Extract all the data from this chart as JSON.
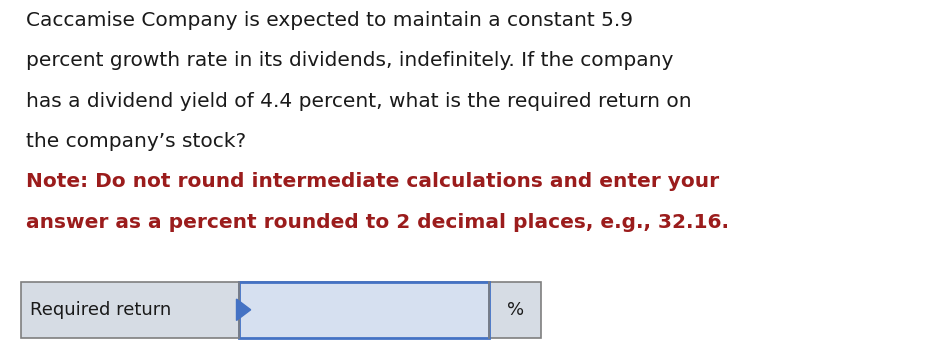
{
  "background_color": "#ffffff",
  "body_lines": [
    "Caccamise Company is expected to maintain a constant 5.9",
    "percent growth rate in its dividends, indefinitely. If the company",
    "has a dividend yield of 4.4 percent, what is the required return on",
    "the company’s stock?"
  ],
  "note_lines": [
    "Note: Do not round intermediate calculations and enter your",
    "answer as a percent rounded to 2 decimal places, e.g., 32.16."
  ],
  "body_color": "#1a1a1a",
  "note_color": "#9b1c1c",
  "label_text": "Required return",
  "percent_text": "%",
  "body_fontsize": 14.5,
  "note_fontsize": 14.5,
  "label_fontsize": 13,
  "percent_fontsize": 13,
  "input_box_fill": "#d6e0f0",
  "input_box_border": "#4472c4",
  "row_bg_color": "#d6dce4",
  "row_border_color": "#7f7f7f",
  "arrow_color": "#4472c4"
}
